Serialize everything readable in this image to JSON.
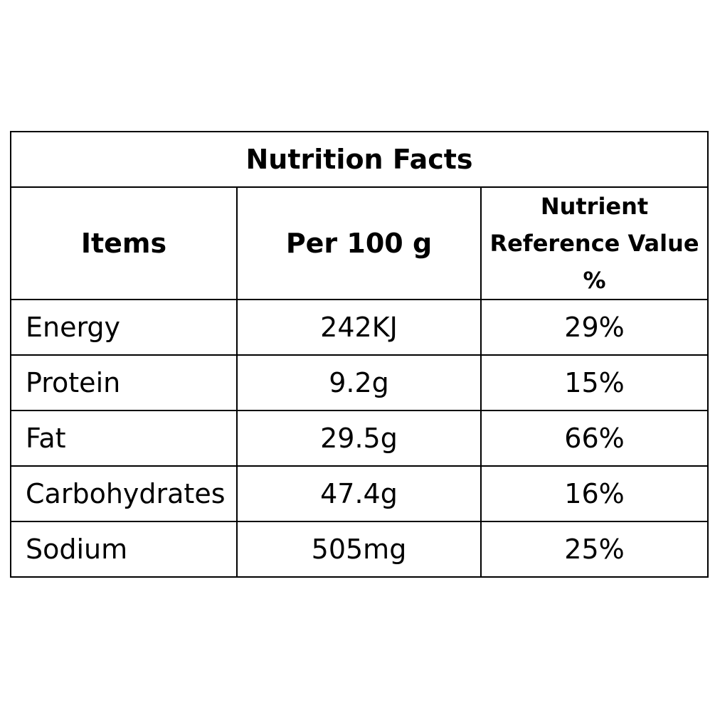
{
  "table": {
    "title": "Nutrition Facts",
    "headers": {
      "items": "Items",
      "per": "Per 100 g",
      "nrv_line1": "Nutrient",
      "nrv_line2": "Reference Value",
      "nrv_line3": "%"
    },
    "rows": [
      {
        "item": "Energy",
        "per": "242KJ",
        "nrv": "29%"
      },
      {
        "item": "Protein",
        "per": "9.2g",
        "nrv": "15%"
      },
      {
        "item": "Fat",
        "per": "29.5g",
        "nrv": "66%"
      },
      {
        "item": "Carbohydrates",
        "per": "47.4g",
        "nrv": "16%"
      },
      {
        "item": "Sodium",
        "per": "505mg",
        "nrv": "25%"
      }
    ]
  }
}
